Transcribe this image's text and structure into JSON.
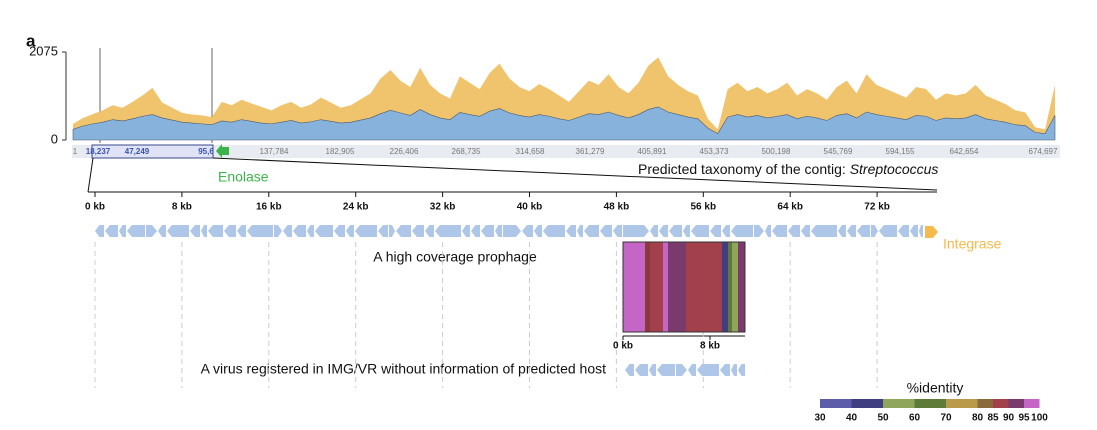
{
  "panel_label": "a",
  "coverage": {
    "ylim": [
      0,
      2075
    ],
    "yticks": [
      0,
      2075
    ],
    "upper": {
      "color": "#f0c46c",
      "values": [
        380,
        520,
        610,
        700,
        820,
        760,
        900,
        1050,
        1230,
        880,
        760,
        640,
        600,
        580,
        540,
        900,
        820,
        950,
        860,
        780,
        700,
        820,
        900,
        760,
        840,
        1000,
        880,
        760,
        820,
        960,
        1100,
        1450,
        1650,
        1400,
        1250,
        1700,
        1300,
        1100,
        980,
        1500,
        1350,
        1200,
        1580,
        1800,
        1450,
        1250,
        1150,
        1320,
        1200,
        1050,
        900,
        1150,
        1400,
        1300,
        1550,
        1250,
        1100,
        1350,
        1750,
        1950,
        1500,
        1300,
        1150,
        1050,
        500,
        250,
        1200,
        1350,
        1150,
        1250,
        1100,
        1200,
        1350,
        1050,
        1200,
        1100,
        950,
        1250,
        1400,
        1100,
        1550,
        1300,
        1200,
        1100,
        1000,
        1250,
        1200,
        950,
        1100,
        1050,
        1100,
        1300,
        1050,
        950,
        850,
        700,
        650,
        300,
        250,
        1300
      ]
    },
    "lower": {
      "color": "#86b2dc",
      "values": [
        250,
        330,
        380,
        420,
        480,
        450,
        500,
        560,
        600,
        520,
        470,
        420,
        400,
        380,
        360,
        450,
        420,
        480,
        440,
        400,
        380,
        420,
        460,
        400,
        430,
        480,
        440,
        400,
        420,
        470,
        520,
        620,
        700,
        640,
        580,
        720,
        600,
        520,
        480,
        650,
        600,
        560,
        680,
        740,
        640,
        580,
        540,
        600,
        560,
        500,
        460,
        540,
        620,
        600,
        660,
        580,
        520,
        600,
        720,
        780,
        660,
        600,
        540,
        500,
        280,
        150,
        540,
        600,
        540,
        580,
        520,
        560,
        600,
        500,
        560,
        520,
        460,
        580,
        620,
        520,
        660,
        600,
        560,
        520,
        480,
        580,
        560,
        460,
        520,
        500,
        520,
        600,
        500,
        460,
        420,
        360,
        340,
        180,
        150,
        580
      ]
    }
  },
  "ruler": [
    "1",
    "18,237",
    "47,249",
    "95,6",
    "137,784",
    "182,905",
    "226,406",
    "268,735",
    "314,658",
    "361,279",
    "405,891",
    "453,373",
    "500,198",
    "545,769",
    "594,155",
    "642,654",
    "674,697"
  ],
  "enolase": "Enolase",
  "taxonomy": {
    "prefix": "Predicted taxonomy of the contig: ",
    "genus": "Streptococcus"
  },
  "kb_ticks": [
    "0 kb",
    "8 kb",
    "16 kb",
    "24 kb",
    "32 kb",
    "40 kb",
    "48 kb",
    "56 kb",
    "64 kb",
    "72 kb"
  ],
  "integrase": "Integrase",
  "prophage_label": "A high coverage prophage",
  "inset_ticks": [
    "0 kb",
    "8 kb"
  ],
  "virus_label": "A virus registered in IMG/VR without information of predicted host",
  "identity_legend": {
    "title": "%identity",
    "ticks": [
      30,
      40,
      50,
      60,
      70,
      80,
      85,
      90,
      95,
      100
    ],
    "colors": [
      "#5c5caa",
      "#3e3e80",
      "#8fa65a",
      "#5e7b3a",
      "#b89a4a",
      "#8a6a3a",
      "#a2414c",
      "#7a3a6c",
      "#c566c6"
    ]
  }
}
